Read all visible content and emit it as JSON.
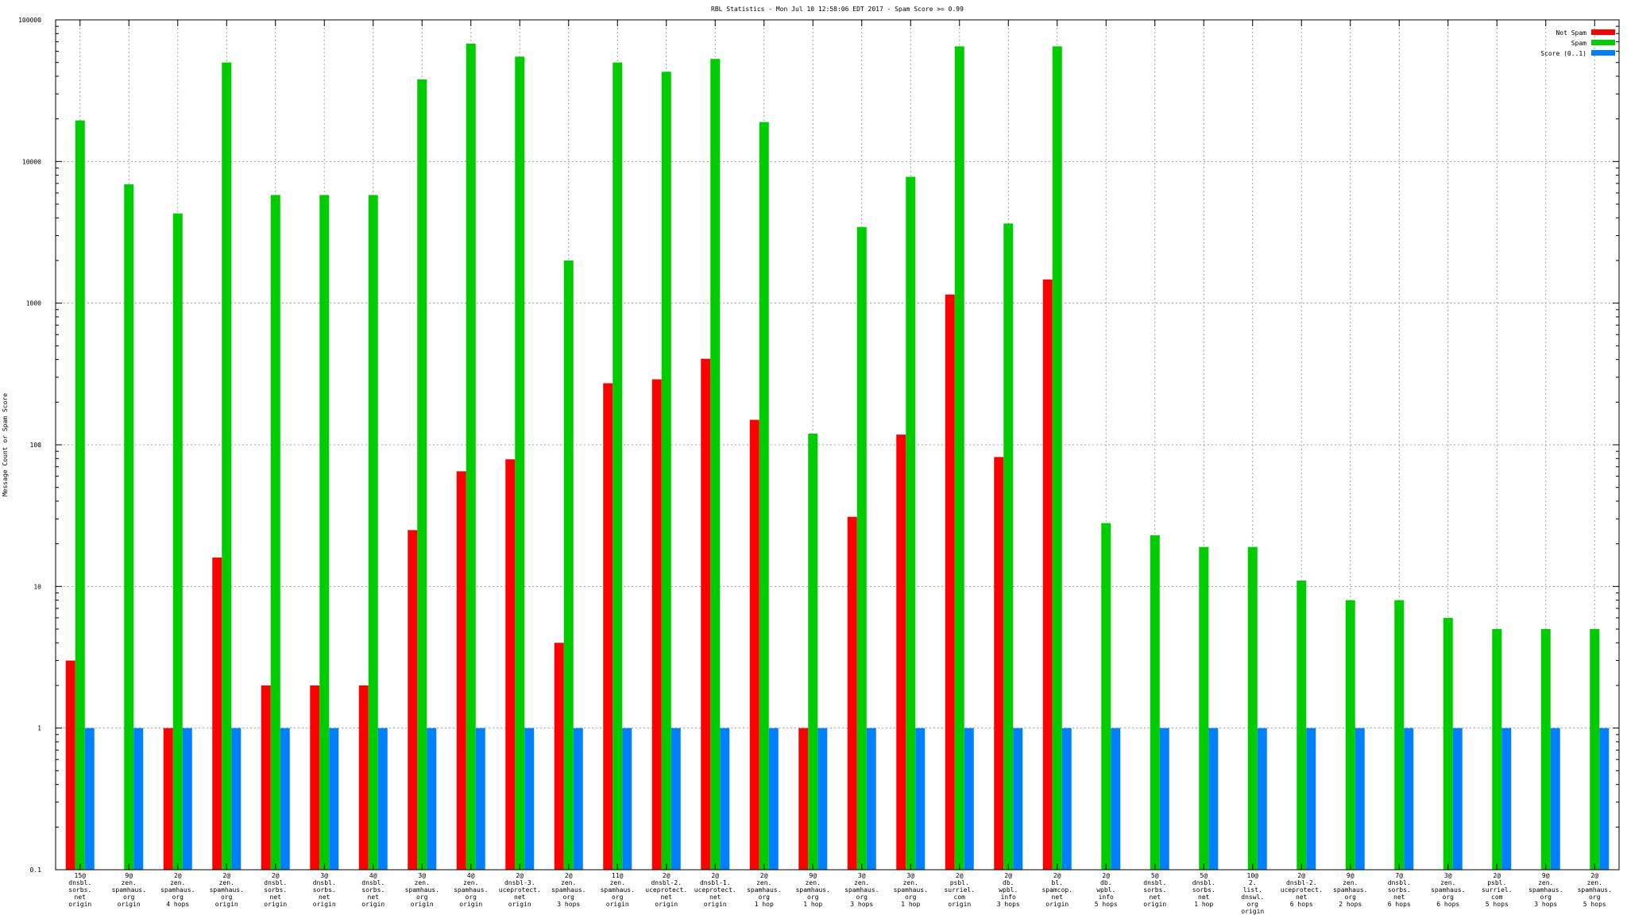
{
  "chart_data": {
    "type": "bar",
    "title": "RBL Statistics - Mon Jul 10 12:58:06 EDT 2017 - Spam Score >= 0.99",
    "ylabel": "Message Count or Spam Score",
    "xlabel": "",
    "yscale": "log",
    "ylim": [
      0.1,
      100000
    ],
    "y_ticks": [
      "0.1",
      "1",
      "10",
      "100",
      "1000",
      "10000",
      "100000"
    ],
    "grid": true,
    "legend_position": "top-right",
    "colors": {
      "not_spam": "#ff0000",
      "spam": "#00cc00",
      "score": "#0080ff"
    },
    "categories": [
      [
        "15@",
        "dnsbl.",
        "sorbs.",
        "net",
        "origin"
      ],
      [
        "9@",
        "zen.",
        "spamhaus.",
        "org",
        "origin"
      ],
      [
        "2@",
        "zen.",
        "spamhaus.",
        "org",
        "4 hops"
      ],
      [
        "2@",
        "zen.",
        "spamhaus.",
        "org",
        "origin"
      ],
      [
        "2@",
        "dnsbl.",
        "sorbs.",
        "net",
        "origin"
      ],
      [
        "3@",
        "dnsbl.",
        "sorbs.",
        "net",
        "origin"
      ],
      [
        "4@",
        "dnsbl.",
        "sorbs.",
        "net",
        "origin"
      ],
      [
        "3@",
        "zen.",
        "spamhaus.",
        "org",
        "origin"
      ],
      [
        "4@",
        "zen.",
        "spamhaus.",
        "org",
        "origin"
      ],
      [
        "2@",
        "dnsbl-3.",
        "uceprotect.",
        "net",
        "origin"
      ],
      [
        "2@",
        "zen.",
        "spamhaus.",
        "org",
        "3 hops"
      ],
      [
        "11@",
        "zen.",
        "spamhaus.",
        "org",
        "origin"
      ],
      [
        "2@",
        "dnsbl-2.",
        "uceprotect.",
        "net",
        "origin"
      ],
      [
        "2@",
        "dnsbl-1.",
        "uceprotect.",
        "net",
        "origin"
      ],
      [
        "2@",
        "zen.",
        "spamhaus.",
        "org",
        "1 hop"
      ],
      [
        "9@",
        "zen.",
        "spamhaus.",
        "org",
        "1 hop"
      ],
      [
        "3@",
        "zen.",
        "spamhaus.",
        "org",
        "3 hops"
      ],
      [
        "3@",
        "zen.",
        "spamhaus.",
        "org",
        "1 hop"
      ],
      [
        "2@",
        "psbl.",
        "surriel.",
        "com",
        "origin"
      ],
      [
        "2@",
        "db.",
        "wpbl.",
        "info",
        "3 hops"
      ],
      [
        "2@",
        "bl.",
        "spamcop.",
        "net",
        "origin"
      ],
      [
        "2@",
        "db.",
        "wpbl.",
        "info",
        "5 hops"
      ],
      [
        "5@",
        "dnsbl.",
        "sorbs.",
        "net",
        "origin"
      ],
      [
        "5@",
        "dnsbl.",
        "sorbs.",
        "net",
        "1 hop"
      ],
      [
        "10@",
        "2.",
        "list.",
        "dnswl.",
        "org",
        "origin"
      ],
      [
        "2@",
        "dnsbl-2.",
        "uceprotect.",
        "net",
        "6 hops"
      ],
      [
        "9@",
        "zen.",
        "spamhaus.",
        "org",
        "2 hops"
      ],
      [
        "7@",
        "dnsbl.",
        "sorbs.",
        "net",
        "6 hops"
      ],
      [
        "3@",
        "zen.",
        "spamhaus.",
        "org",
        "6 hops"
      ],
      [
        "2@",
        "psbl.",
        "surriel.",
        "com",
        "5 hops"
      ],
      [
        "9@",
        "zen.",
        "spamhaus.",
        "org",
        "3 hops"
      ],
      [
        "2@",
        "zen.",
        "spamhaus.",
        "org",
        "5 hops"
      ]
    ],
    "series": [
      {
        "name": "Not Spam",
        "values": [
          3,
          null,
          1,
          16,
          2,
          2,
          2,
          25,
          65,
          79,
          4,
          272,
          290,
          405,
          150,
          1,
          31,
          118,
          1150,
          82,
          1470,
          null,
          null,
          null,
          null,
          null,
          null,
          null,
          null,
          null,
          null,
          null
        ]
      },
      {
        "name": "Spam",
        "values": [
          19500,
          6900,
          4300,
          50000,
          5800,
          5800,
          5800,
          38000,
          68000,
          55000,
          2000,
          50000,
          43000,
          53000,
          19000,
          120,
          3450,
          7800,
          65000,
          3650,
          65000,
          28,
          23,
          19,
          19,
          11,
          8,
          8,
          6,
          5,
          5,
          5
        ]
      },
      {
        "name": "Score (0..1)",
        "values": [
          1,
          1,
          1,
          1,
          1,
          1,
          1,
          1,
          1,
          1,
          1,
          1,
          1,
          1,
          1,
          1,
          1,
          1,
          1,
          1,
          1,
          1,
          1,
          1,
          1,
          1,
          1,
          1,
          1,
          1,
          1,
          1
        ]
      }
    ]
  }
}
